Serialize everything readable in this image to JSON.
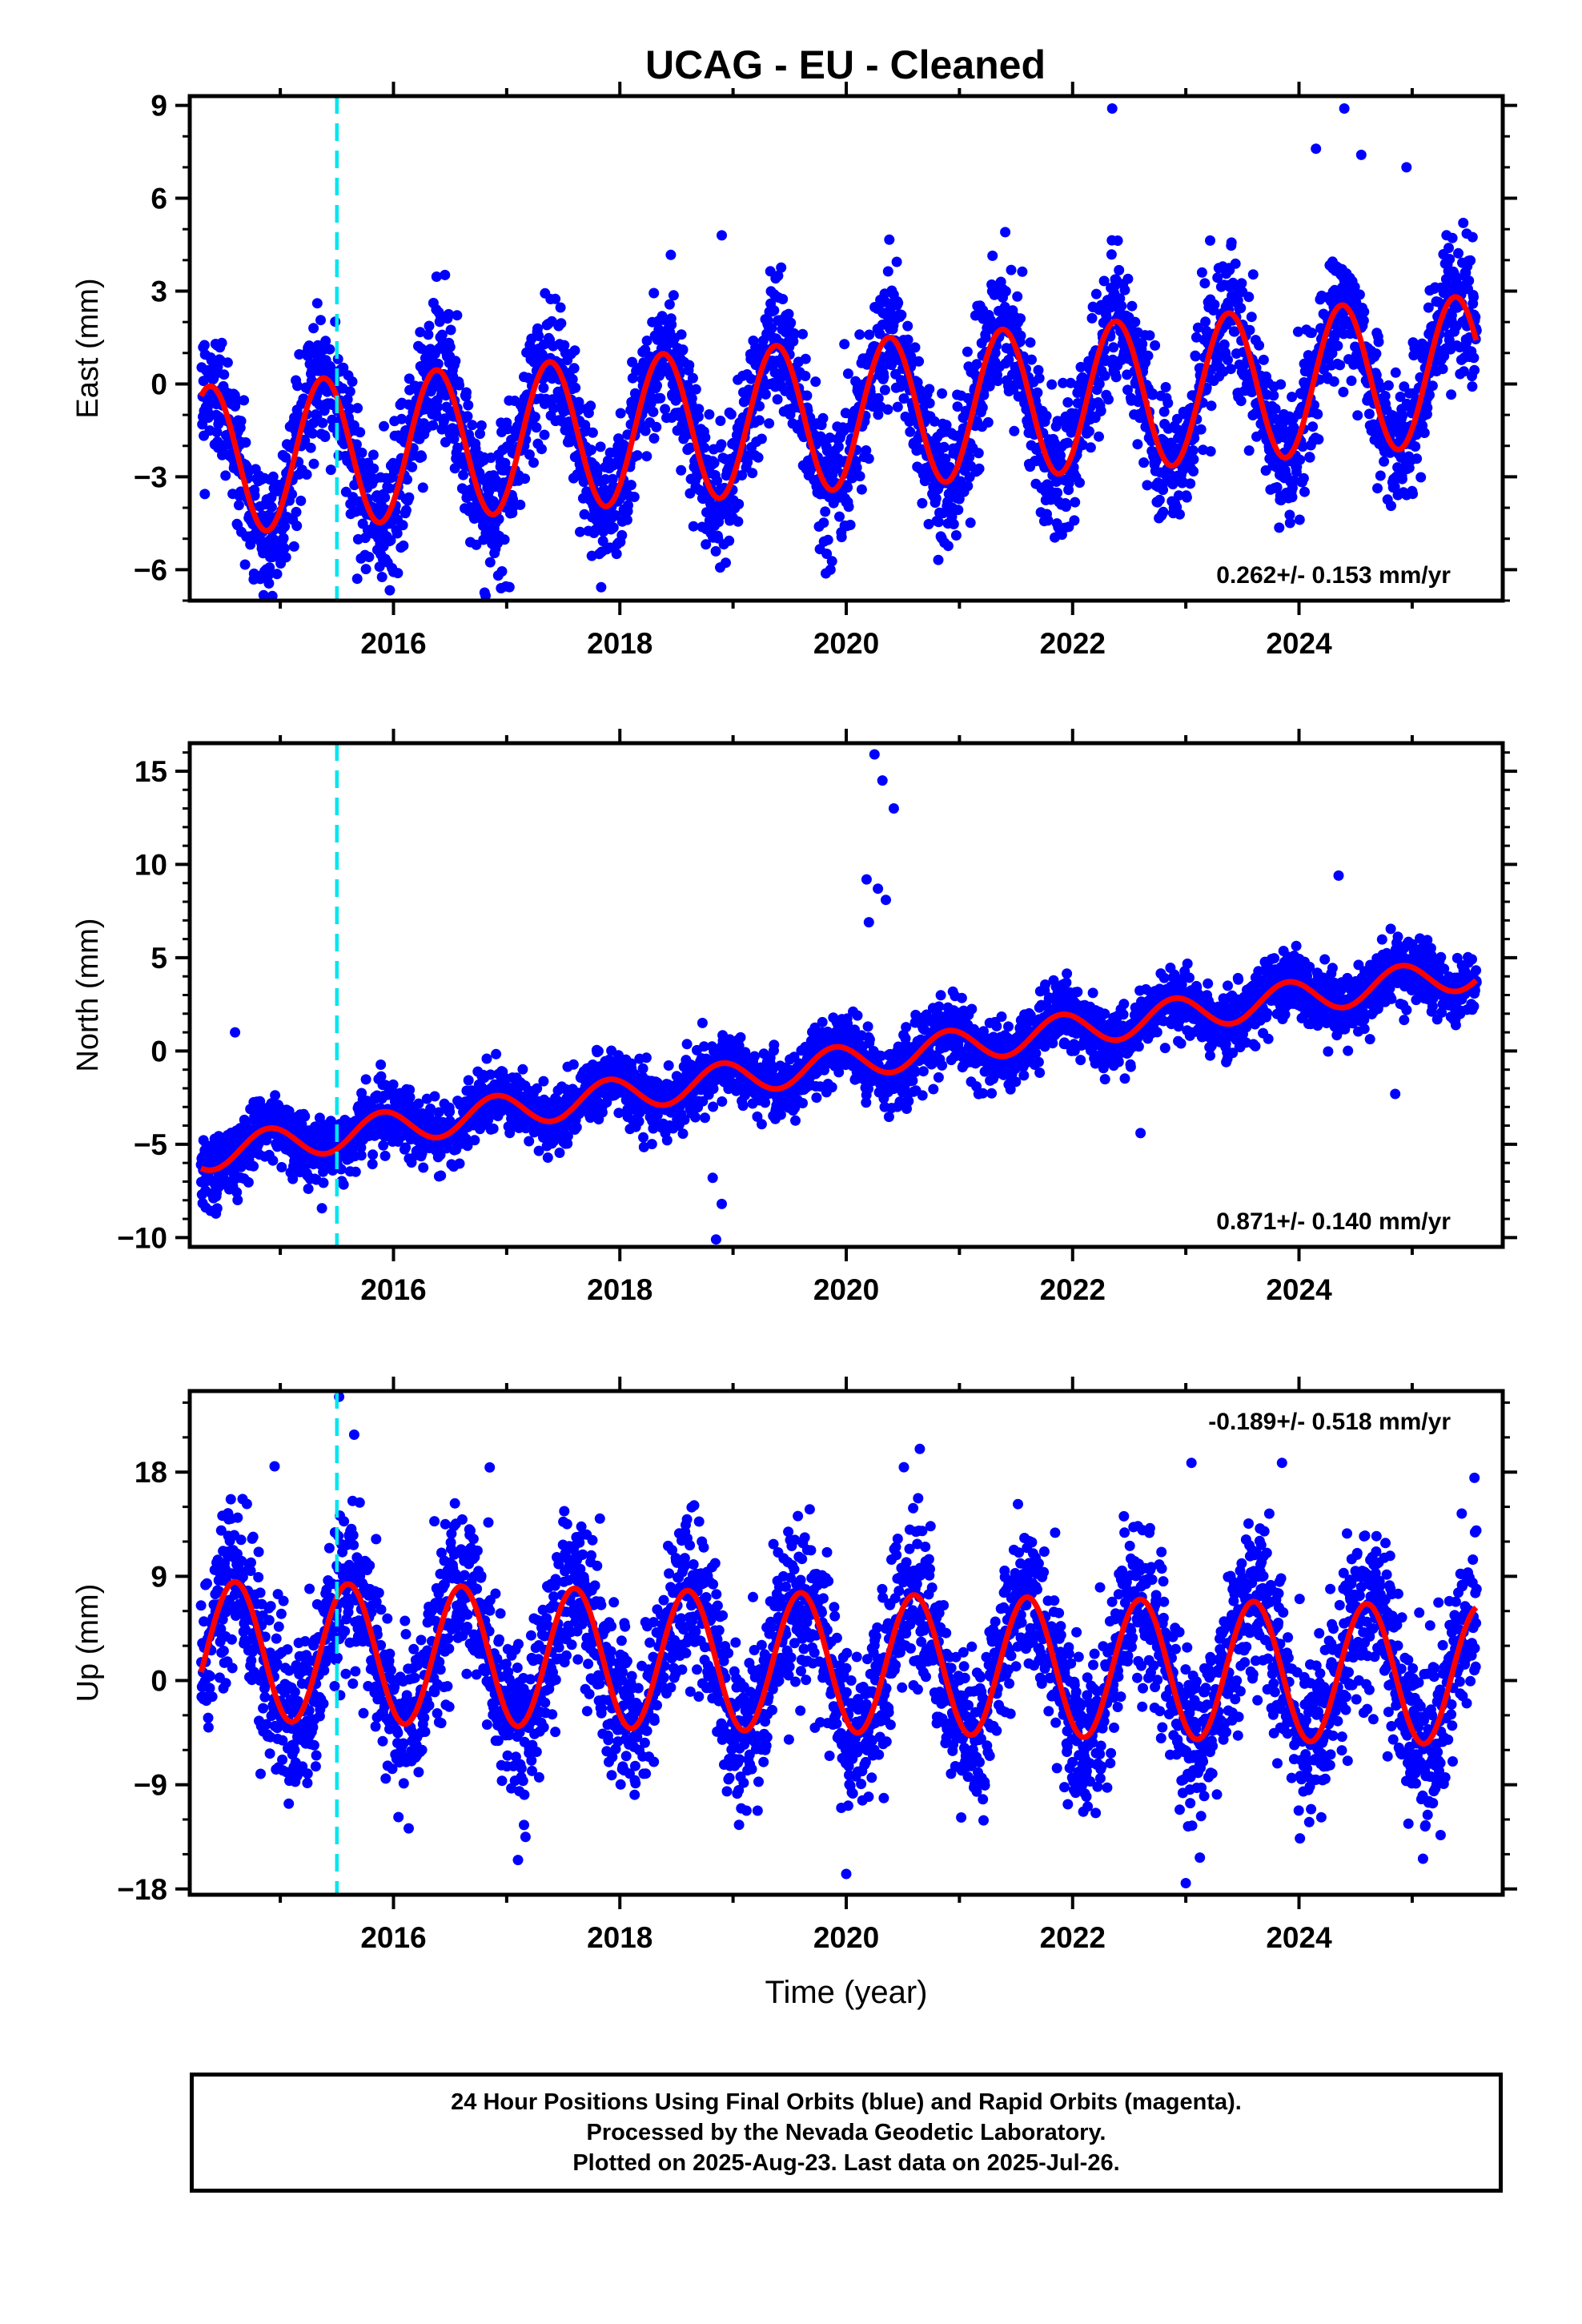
{
  "title": "UCAG  - EU - Cleaned",
  "footer": {
    "line1": "24 Hour Positions Using Final Orbits (blue) and Rapid Orbits (magenta).",
    "line2": "Processed by the Nevada Geodetic Laboratory.",
    "line3": "Plotted on 2025-Aug-23. Last data on 2025-Jul-26."
  },
  "colors": {
    "data": "#0000ff",
    "fit": "#ff0000",
    "event_line": "#00e5ee",
    "frame": "#000000"
  },
  "chart_data": [
    {
      "type": "scatter",
      "component": "East",
      "ylabel": "East (mm)",
      "xlabel": "",
      "xlim": [
        2014.2,
        2025.8
      ],
      "ylim": [
        -7,
        9.3
      ],
      "yticks": [
        -6,
        -3,
        0,
        3,
        6,
        9
      ],
      "xticks": [
        2016,
        2018,
        2020,
        2022,
        2024
      ],
      "xticklabels": [
        "2016",
        "2018",
        "2020",
        "2022",
        "2024"
      ],
      "rate_label": "0.262+/- 0.153 mm/yr",
      "rate_position": "bottom-right",
      "event_line_x": 2015.5,
      "data_span": [
        2014.3,
        2025.57
      ],
      "series": [
        {
          "kind": "daily positions",
          "color": "#0000ff",
          "scatter_sd": 1.1
        },
        {
          "kind": "model fit",
          "color": "#ff0000",
          "model": {
            "offset": -1.0,
            "rate": 0.262,
            "ref_year": 2020,
            "annual_amp": 2.4,
            "peak_phase": 0.38
          }
        }
      ],
      "outliers": [
        [
          2022.35,
          8.9
        ],
        [
          2024.4,
          8.9
        ],
        [
          2024.15,
          7.6
        ],
        [
          2024.55,
          7.4
        ],
        [
          2024.95,
          7.0
        ],
        [
          2018.9,
          4.8
        ],
        [
          2016.95,
          -6.6
        ],
        [
          2015.05,
          -5.6
        ]
      ]
    },
    {
      "type": "scatter",
      "component": "North",
      "ylabel": "North (mm)",
      "xlabel": "",
      "xlim": [
        2014.2,
        2025.8
      ],
      "ylim": [
        -10.5,
        16.5
      ],
      "yticks": [
        -10,
        -5,
        0,
        5,
        10,
        15
      ],
      "xticks": [
        2016,
        2018,
        2020,
        2022,
        2024
      ],
      "xticklabels": [
        "2016",
        "2018",
        "2020",
        "2022",
        "2024"
      ],
      "rate_label": "0.871+/- 0.140 mm/yr",
      "rate_position": "bottom-right",
      "event_line_x": 2015.5,
      "data_span": [
        2014.3,
        2025.57
      ],
      "series": [
        {
          "kind": "daily positions",
          "color": "#0000ff",
          "scatter_sd": 0.85
        },
        {
          "kind": "model fit",
          "color": "#ff0000",
          "model": {
            "offset": -0.6,
            "rate": 0.871,
            "ref_year": 2020,
            "annual_amp": 0.9,
            "peak_phase": 0.9
          }
        }
      ],
      "outliers": [
        [
          2020.25,
          15.9
        ],
        [
          2020.32,
          14.5
        ],
        [
          2020.42,
          13.0
        ],
        [
          2020.18,
          9.2
        ],
        [
          2020.28,
          8.7
        ],
        [
          2020.35,
          8.1
        ],
        [
          2020.2,
          6.9
        ],
        [
          2018.85,
          -10.1
        ],
        [
          2018.9,
          -8.2
        ],
        [
          2018.82,
          -6.8
        ],
        [
          2014.6,
          1.0
        ],
        [
          2024.35,
          9.4
        ],
        [
          2024.85,
          -2.3
        ],
        [
          2022.6,
          -4.4
        ]
      ]
    },
    {
      "type": "scatter",
      "component": "Up",
      "ylabel": "Up (mm)",
      "xlabel": "Time (year)",
      "xlim": [
        2014.2,
        2025.8
      ],
      "ylim": [
        -18.5,
        25
      ],
      "yticks": [
        -18,
        -9,
        0,
        9,
        18
      ],
      "xticks": [
        2016,
        2018,
        2020,
        2022,
        2024
      ],
      "xticklabels": [
        "2016",
        "2018",
        "2020",
        "2022",
        "2024"
      ],
      "rate_label": "-0.189+/- 0.518 mm/yr",
      "rate_position": "top-right",
      "event_line_x": 2015.5,
      "data_span": [
        2014.3,
        2025.57
      ],
      "series": [
        {
          "kind": "daily positions",
          "color": "#0000ff",
          "scatter_sd": 3.5
        },
        {
          "kind": "model fit",
          "color": "#ff0000",
          "model": {
            "offset": 1.5,
            "rate": -0.189,
            "ref_year": 2020,
            "annual_amp": 6.0,
            "peak_phase": 0.6
          }
        }
      ],
      "outliers": [
        [
          2015.52,
          24.5
        ],
        [
          2020.65,
          20.0
        ],
        [
          2023.05,
          18.8
        ],
        [
          2023.85,
          18.8
        ],
        [
          2014.95,
          18.5
        ],
        [
          2016.85,
          18.4
        ],
        [
          2025.55,
          17.5
        ],
        [
          2020.0,
          -16.7
        ],
        [
          2023.0,
          -17.5
        ],
        [
          2017.1,
          -15.5
        ]
      ]
    }
  ]
}
